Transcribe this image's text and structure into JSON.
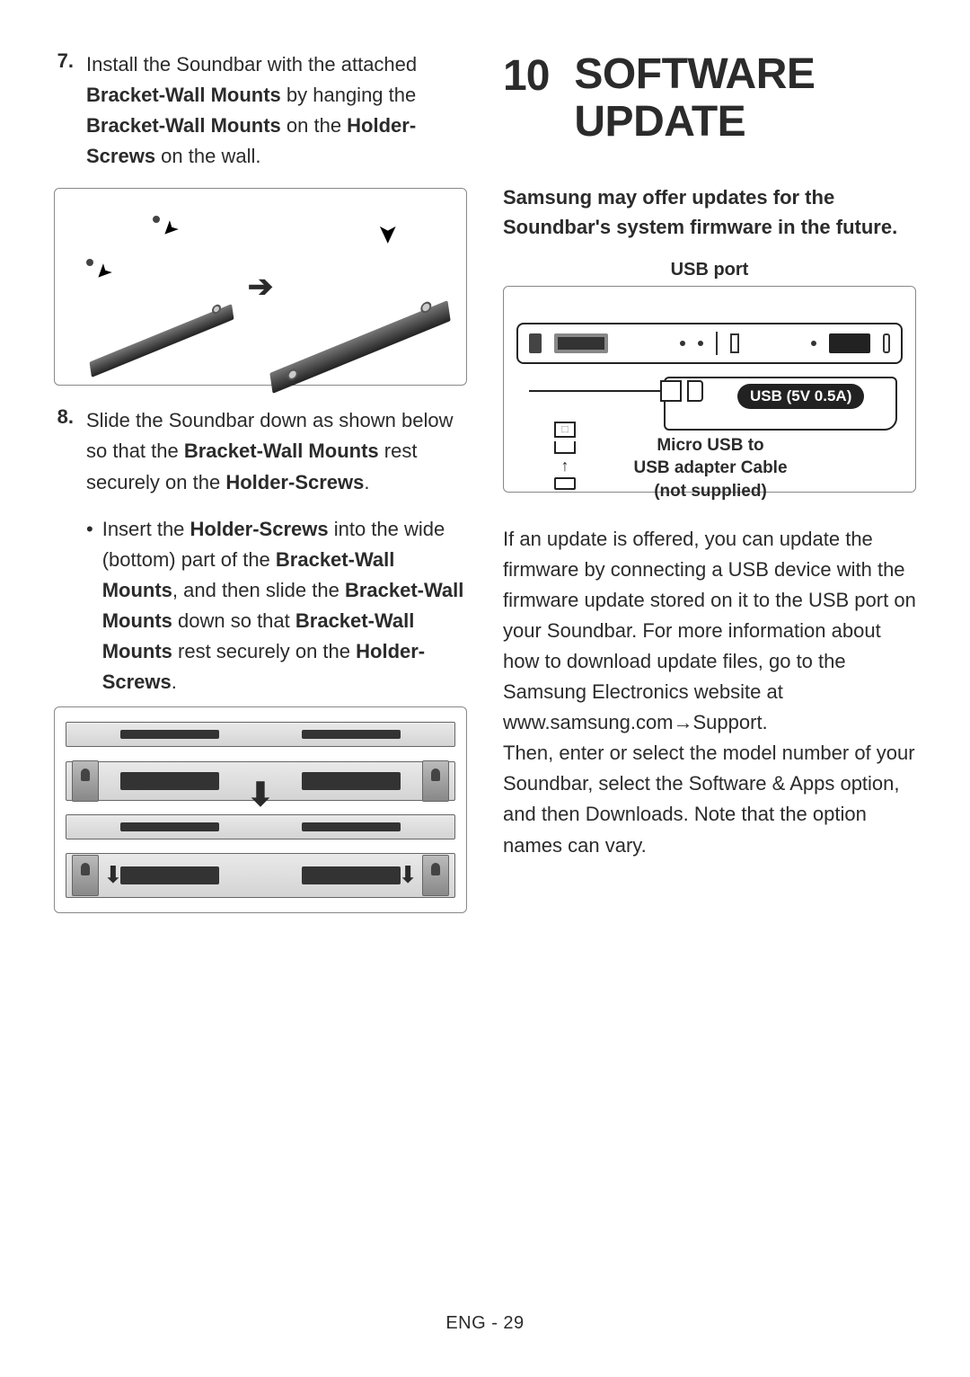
{
  "left": {
    "step7": {
      "num": "7.",
      "html": "Install the Soundbar with the attached <b>Bracket-Wall Mounts</b> by hanging the <b>Bracket-Wall Mounts</b> on the <b>Holder-Screws</b> on the wall."
    },
    "step8": {
      "num": "8.",
      "html": "Slide the Soundbar down as shown below so that the <b>Bracket-Wall Mounts</b> rest securely on the <b>Holder-Screws</b>."
    },
    "bullet": {
      "html": "Insert the <b>Holder-Screws</b> into the wide (bottom) part of the <b>Bracket-Wall Mounts</b>, and then slide the <b>Bracket-Wall Mounts</b> down so that <b>Bracket-Wall Mounts</b> rest securely on the <b>Holder-Screws</b>."
    }
  },
  "right": {
    "section_num": "10",
    "section_title": "SOFTWARE UPDATE",
    "intro": "Samsung may offer updates for the Soundbar's system firmware in the future.",
    "usb_port_label": "USB port",
    "usb_badge": "USB (5V 0.5A)",
    "micro_label_l1": "Micro USB to",
    "micro_label_l2": "USB adapter Cable",
    "micro_label_l3": "(not supplied)",
    "body": "If an update is offered, you can update the firmware by connecting a USB device with the firmware update stored on it to the USB port on your Soundbar. For more information about how to download update files, go to the Samsung Electronics website at",
    "body2": "www.samsung.com→Support.",
    "body3": "Then, enter or select the model number of your Soundbar, select the Software & Apps option, and then Downloads. Note that the option names can vary."
  },
  "footer": "ENG - 29",
  "colors": {
    "text": "#2b2b2b",
    "border": "#888888",
    "dark": "#222222"
  }
}
